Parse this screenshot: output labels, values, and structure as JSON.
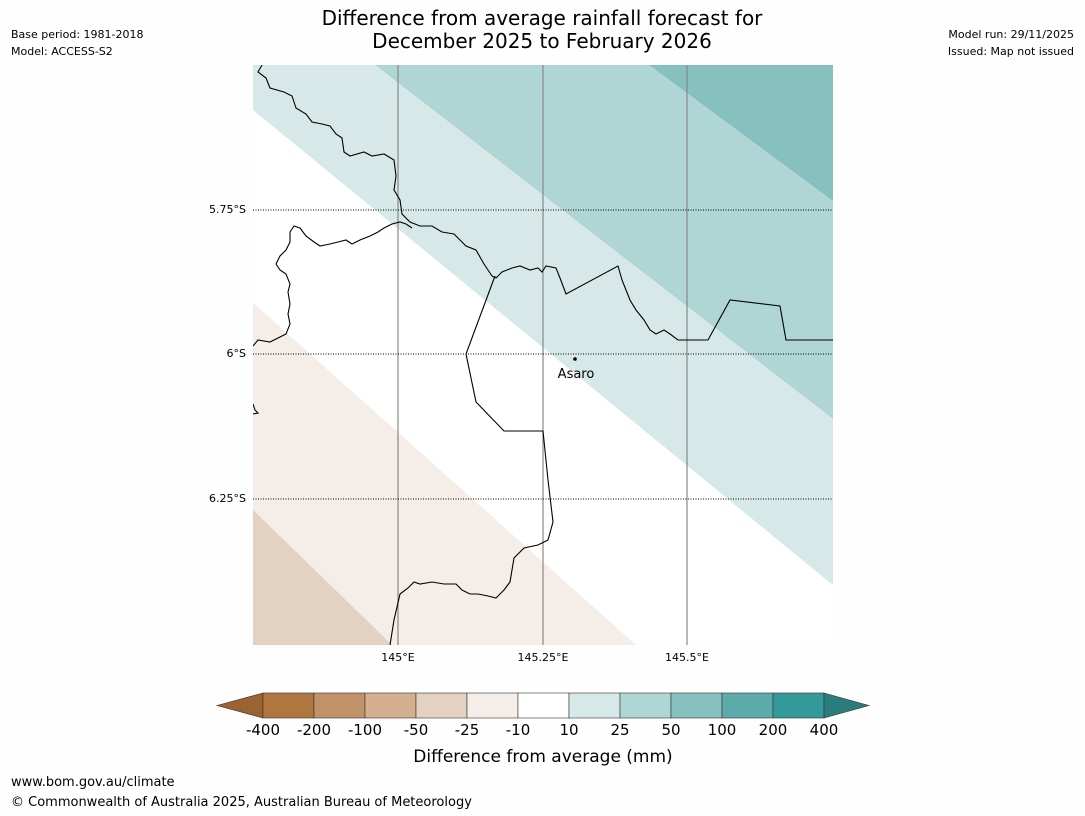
{
  "header": {
    "title_line1": "Difference from average rainfall forecast for",
    "title_line2": "December 2025 to February 2026",
    "base_period": "Base period: 1981-2018",
    "model": "Model: ACCESS-S2",
    "model_run": "Model run: 29/11/2025",
    "issued": "Issued: Map not issued"
  },
  "map": {
    "lat_labels": [
      "5.75°S",
      "6°S",
      "6.25°S"
    ],
    "lon_labels": [
      "145°E",
      "145.25°E",
      "145.5°E"
    ],
    "place": {
      "name": "Asaro"
    }
  },
  "legend": {
    "title": "Difference from average (mm)",
    "tick_labels": [
      "-400",
      "-200",
      "-100",
      "-50",
      "-25",
      "-10",
      "10",
      "25",
      "50",
      "100",
      "200",
      "400"
    ],
    "colors": [
      "#9a6331",
      "#b07640",
      "#c29268",
      "#d4b08f",
      "#e3d2c2",
      "#f4ede8",
      "#ffffff",
      "#d6e9e8",
      "#afd5d5",
      "#86c1c0",
      "#5daaaa",
      "#34999a",
      "#2a7c7d"
    ]
  },
  "footer": {
    "website": "www.bom.gov.au/climate",
    "copyright": "© Commonwealth of Australia 2025, Australian Bureau of Meteorology"
  }
}
